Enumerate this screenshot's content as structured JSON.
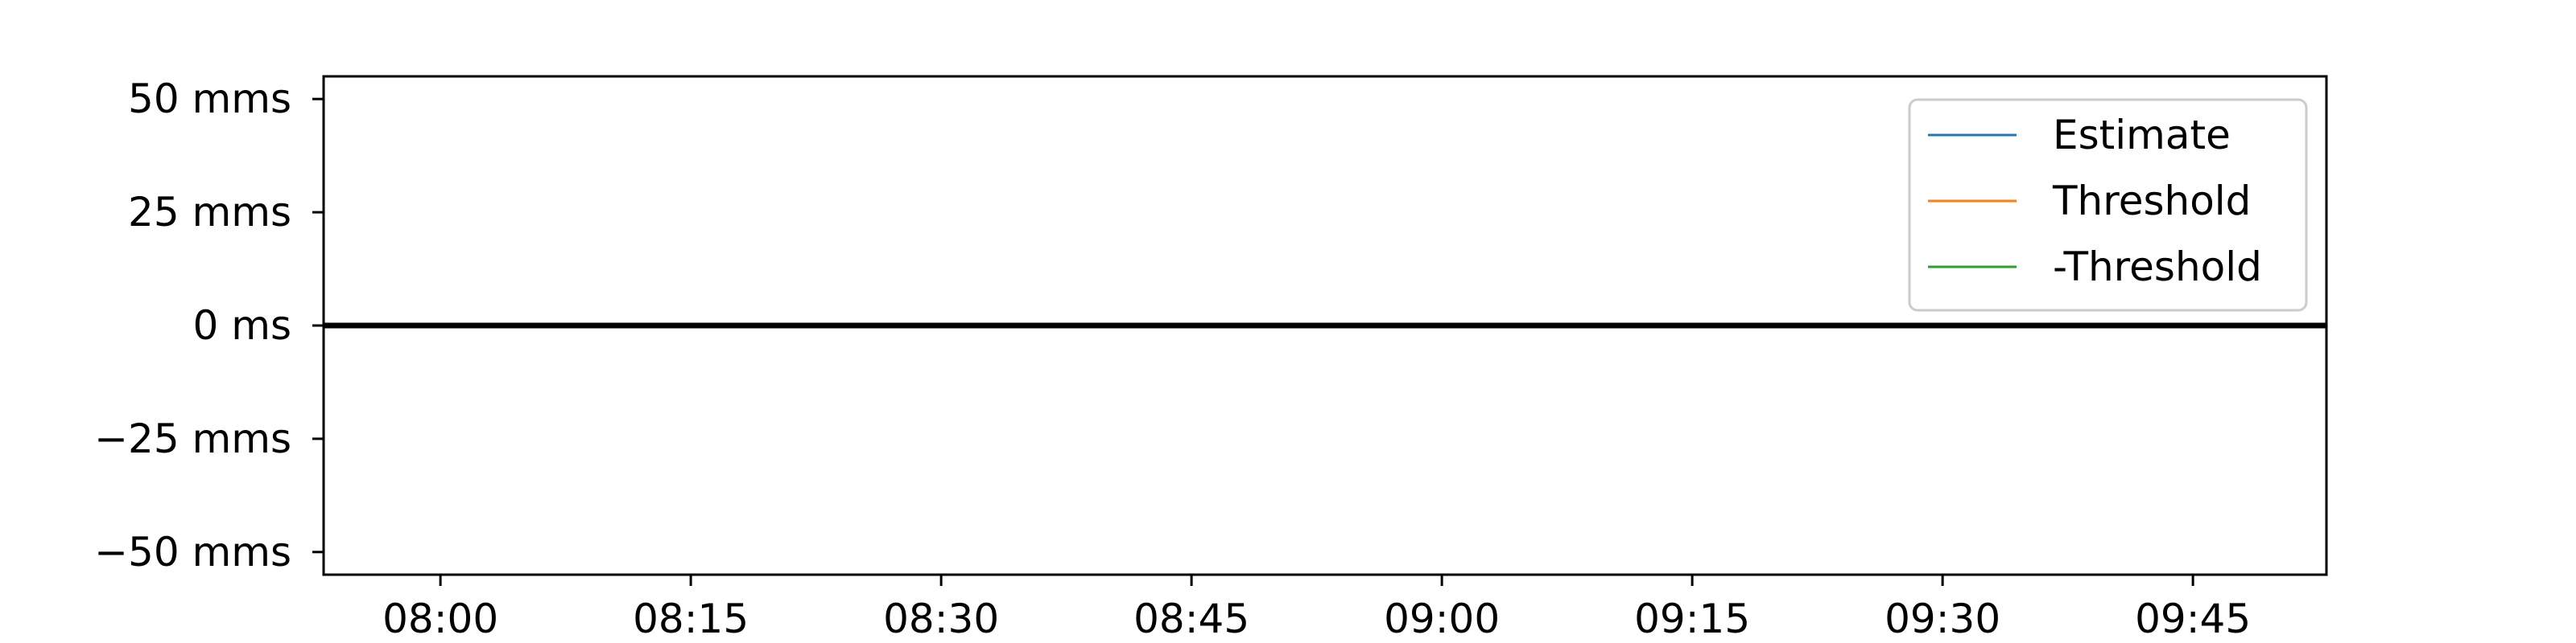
{
  "chart_data": {
    "type": "line",
    "title": "",
    "xlabel": "",
    "ylabel": "",
    "xlim": [
      "07:53",
      "09:53"
    ],
    "ylim": [
      -55,
      55
    ],
    "x_ticks": [
      {
        "value": "08:00",
        "label": "08:00"
      },
      {
        "value": "08:15",
        "label": "08:15"
      },
      {
        "value": "08:30",
        "label": "08:30"
      },
      {
        "value": "08:45",
        "label": "08:45"
      },
      {
        "value": "09:00",
        "label": "09:00"
      },
      {
        "value": "09:15",
        "label": "09:15"
      },
      {
        "value": "09:30",
        "label": "09:30"
      },
      {
        "value": "09:45",
        "label": "09:45"
      }
    ],
    "y_ticks": [
      {
        "value": 50,
        "label": "50 mms"
      },
      {
        "value": 25,
        "label": "25 mms"
      },
      {
        "value": 0,
        "label": "0 ms"
      },
      {
        "value": -25,
        "label": "−25 mms"
      },
      {
        "value": -50,
        "label": "−50 mms"
      }
    ],
    "reference_line": {
      "y": 0,
      "color": "#000000"
    },
    "grid": false,
    "legend_placement": "top-right",
    "series": [
      {
        "name": "Estimate",
        "color": "#1f77b4",
        "x": [],
        "y": []
      },
      {
        "name": "Threshold",
        "color": "#ff7f0e",
        "x": [],
        "y": []
      },
      {
        "name": "-Threshold",
        "color": "#2ca02c",
        "x": [],
        "y": []
      }
    ]
  }
}
